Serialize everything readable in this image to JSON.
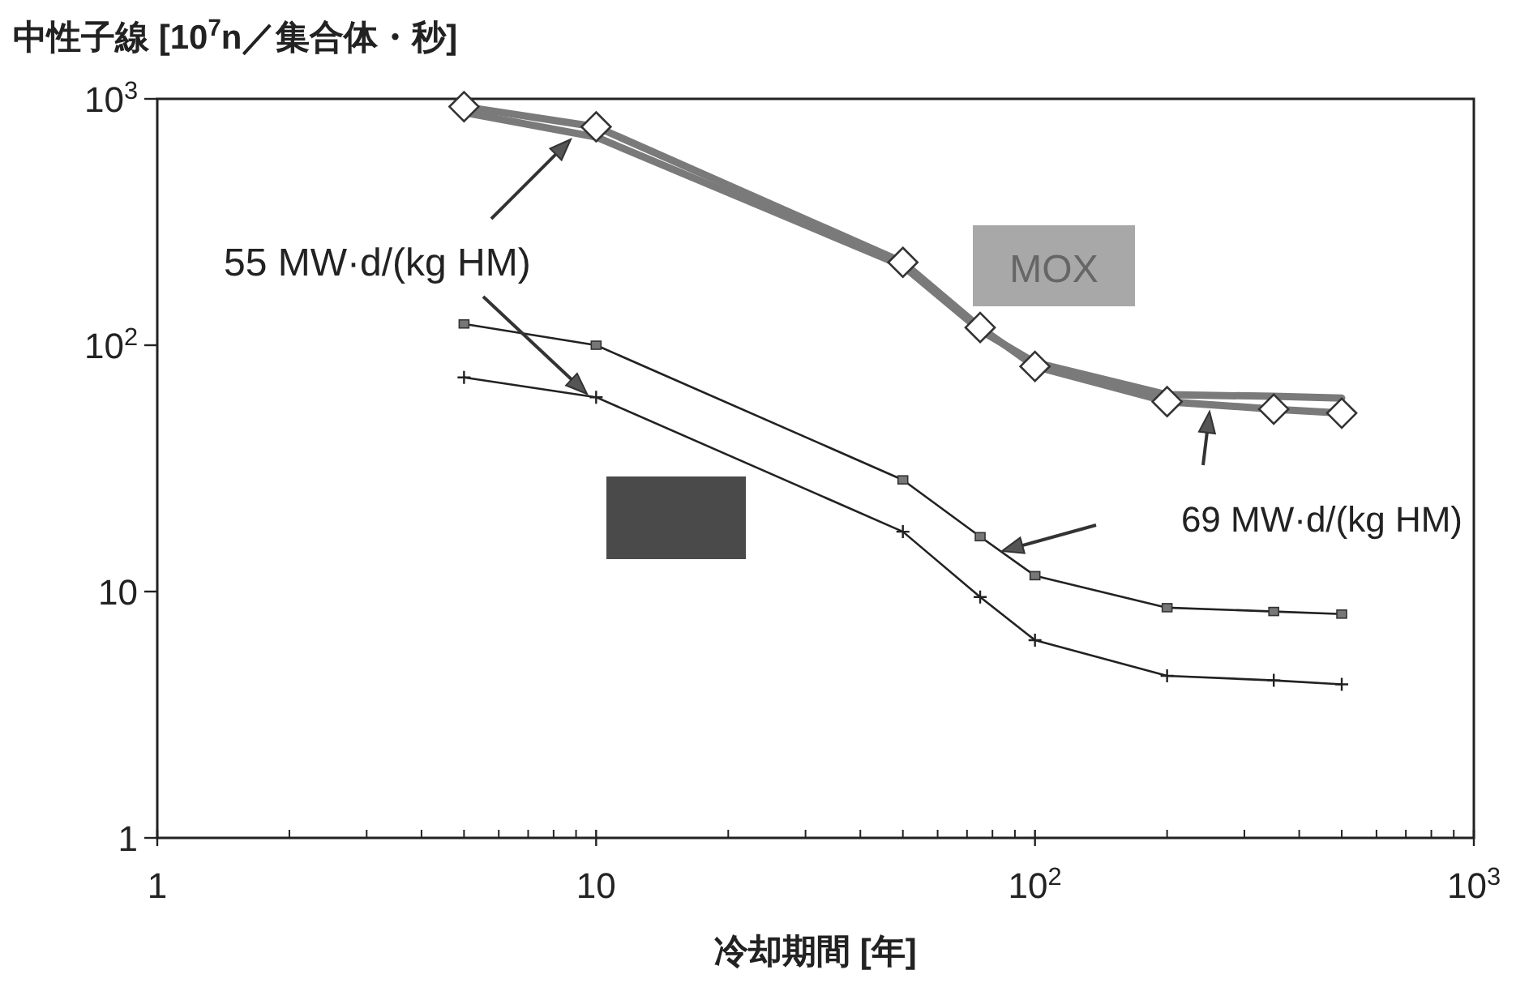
{
  "chart_data": {
    "type": "line",
    "ylabel": "中性子線 [10$^{7}$n／集合体・秒]",
    "xlabel": "冷却期間 [年]",
    "log": "xy",
    "xlim": [
      1,
      1000
    ],
    "ylim": [
      1,
      1000
    ],
    "xticks": [
      1,
      10,
      {
        "value": 100,
        "label": "10$^{2}$"
      },
      {
        "value": 1000,
        "label": "10$^{3}$"
      }
    ],
    "yticks": [
      1,
      10,
      {
        "value": 100,
        "label": "10$^{2}$"
      },
      {
        "value": 1000,
        "label": "10$^{3}$"
      }
    ],
    "grid": false,
    "x": [
      5,
      10,
      50,
      75,
      100,
      200,
      350,
      500
    ],
    "series": [
      {
        "color": "#7a7a7a",
        "marker": "none",
        "values": [
          880,
          700,
          210,
          115,
          85,
          63,
          62,
          61
        ]
      },
      {
        "color": "#7a7a7a",
        "marker": "diamond",
        "values": [
          930,
          770,
          217,
          118,
          82,
          59,
          55,
          53
        ]
      },
      {
        "color": "#222222",
        "marker": "square",
        "values": [
          122,
          100,
          28.4,
          16.7,
          11.6,
          8.6,
          8.3,
          8.1
        ]
      },
      {
        "color": "#222222",
        "marker": "cross",
        "values": [
          74,
          61.5,
          17.5,
          9.5,
          6.35,
          4.55,
          4.36,
          4.2
        ]
      }
    ],
    "annotations": [
      "55 MW·d/(kg HM)",
      "69 MW·d/(kg HM)",
      "MOX"
    ]
  }
}
